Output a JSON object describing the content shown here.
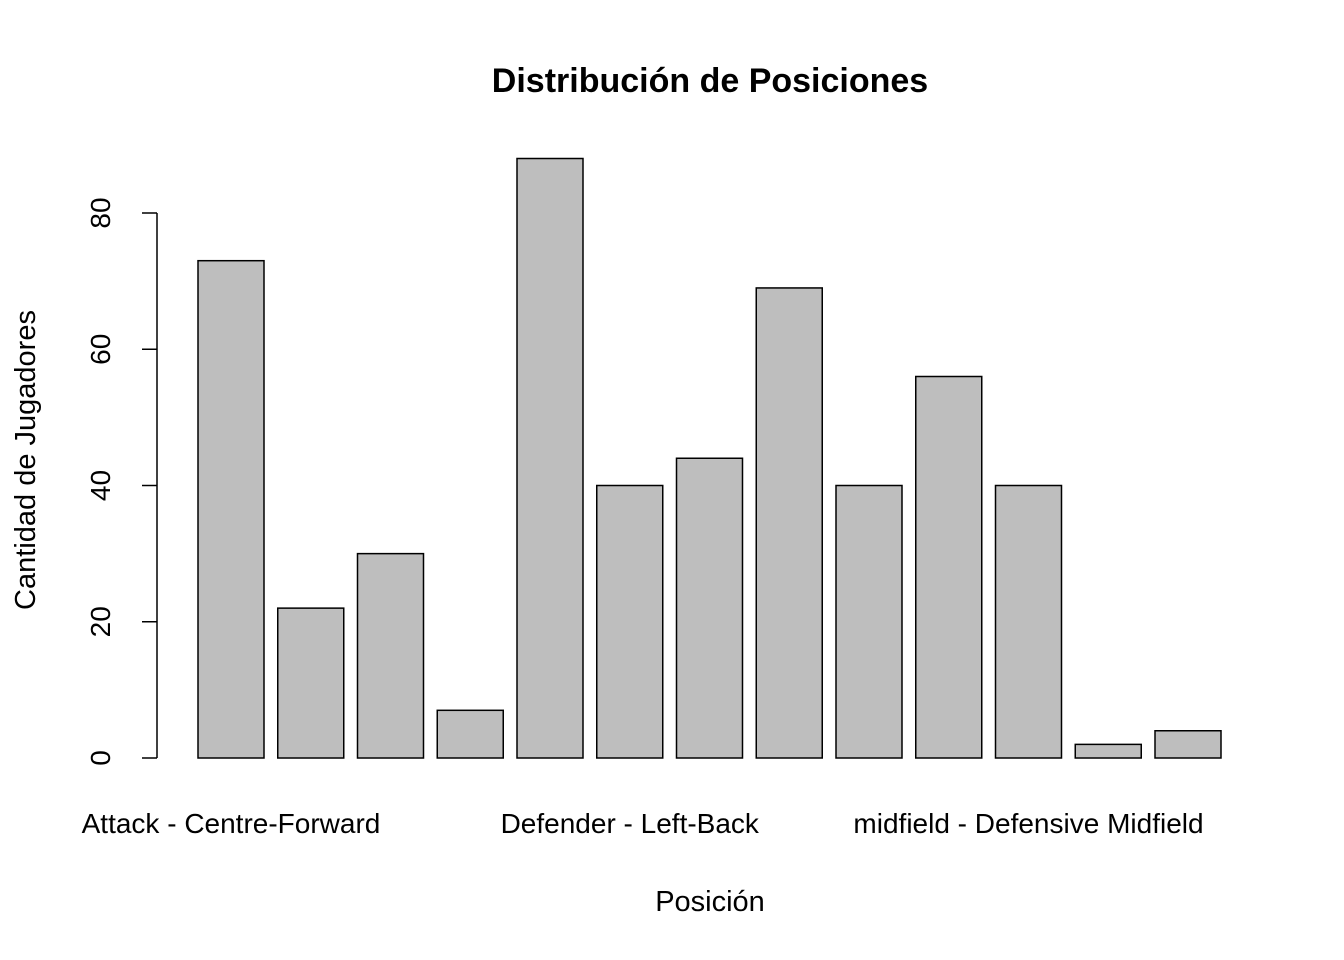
{
  "chart_data": {
    "type": "bar",
    "title": "Distribución de Posiciones",
    "xlabel": "Posición",
    "ylabel": "Cantidad de Jugadores",
    "ylim": [
      0,
      90
    ],
    "yticks": [
      0,
      20,
      40,
      60,
      80
    ],
    "grid": false,
    "bar_color": "#bebebe",
    "edge_color": "#000000",
    "values": [
      73,
      22,
      30,
      7,
      88,
      40,
      44,
      69,
      40,
      56,
      40,
      2,
      4
    ],
    "visible_category_labels": [
      {
        "index": 0,
        "label": "Attack - Centre-Forward"
      },
      {
        "index": 5,
        "label": "Defender - Left-Back"
      },
      {
        "index": 10,
        "label": "midfield - Defensive Midfield"
      }
    ]
  }
}
